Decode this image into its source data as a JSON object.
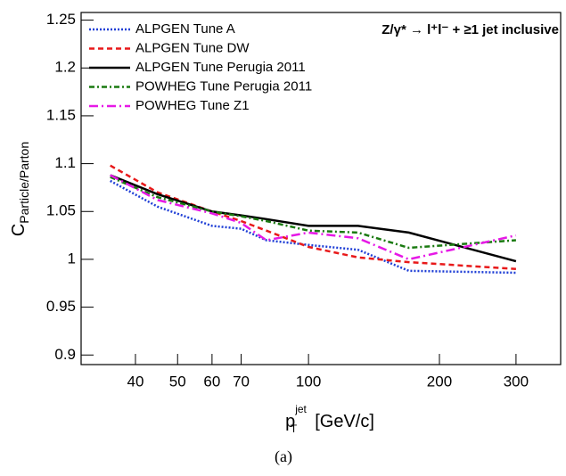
{
  "chart_data": {
    "type": "line",
    "annotation": "Z/γ* → l⁺l⁻ + ≥1 jet inclusive",
    "ylabel": "C",
    "ylabel_sub": "Particle/Parton",
    "xlabel": "p",
    "xlabel_sup": "jet",
    "xlabel_sub": "T",
    "xlabel_unit": "[GeV/c]",
    "caption": "(a)",
    "x": [
      35,
      45,
      60,
      70,
      80,
      100,
      130,
      170,
      300
    ],
    "series": [
      {
        "name": "ALPGEN Tune A",
        "color": "#1f3fd6",
        "style": "dotted",
        "values": [
          1.082,
          1.055,
          1.035,
          1.032,
          1.02,
          1.015,
          1.01,
          0.988,
          0.986
        ]
      },
      {
        "name": "ALPGEN Tune DW",
        "color": "#e8191a",
        "style": "dashed",
        "values": [
          1.098,
          1.07,
          1.05,
          1.04,
          1.03,
          1.013,
          1.002,
          0.997,
          0.99
        ]
      },
      {
        "name": "ALPGEN Tune Perugia 2011",
        "color": "#000000",
        "style": "solid",
        "values": [
          1.088,
          1.068,
          1.05,
          1.046,
          1.042,
          1.035,
          1.035,
          1.028,
          0.998
        ]
      },
      {
        "name": "POWHEG Tune Perugia 2011",
        "color": "#1a7a10",
        "style": "dashdot",
        "values": [
          1.086,
          1.065,
          1.05,
          1.045,
          1.04,
          1.03,
          1.028,
          1.012,
          1.02
        ]
      },
      {
        "name": "POWHEG Tune Z1",
        "color": "#e619e6",
        "style": "longdashdot",
        "values": [
          1.088,
          1.062,
          1.048,
          1.038,
          1.02,
          1.028,
          1.022,
          1.0,
          1.025
        ]
      }
    ],
    "xscale": "log",
    "xlim": [
      30,
      380
    ],
    "ylim": [
      0.89,
      1.258
    ],
    "xticks": [
      40,
      50,
      60,
      70,
      100,
      200,
      300
    ],
    "yticks": [
      0.9,
      0.95,
      1,
      1.05,
      1.1,
      1.15,
      1.2,
      1.25
    ],
    "grid": false,
    "legend": "upper left"
  }
}
